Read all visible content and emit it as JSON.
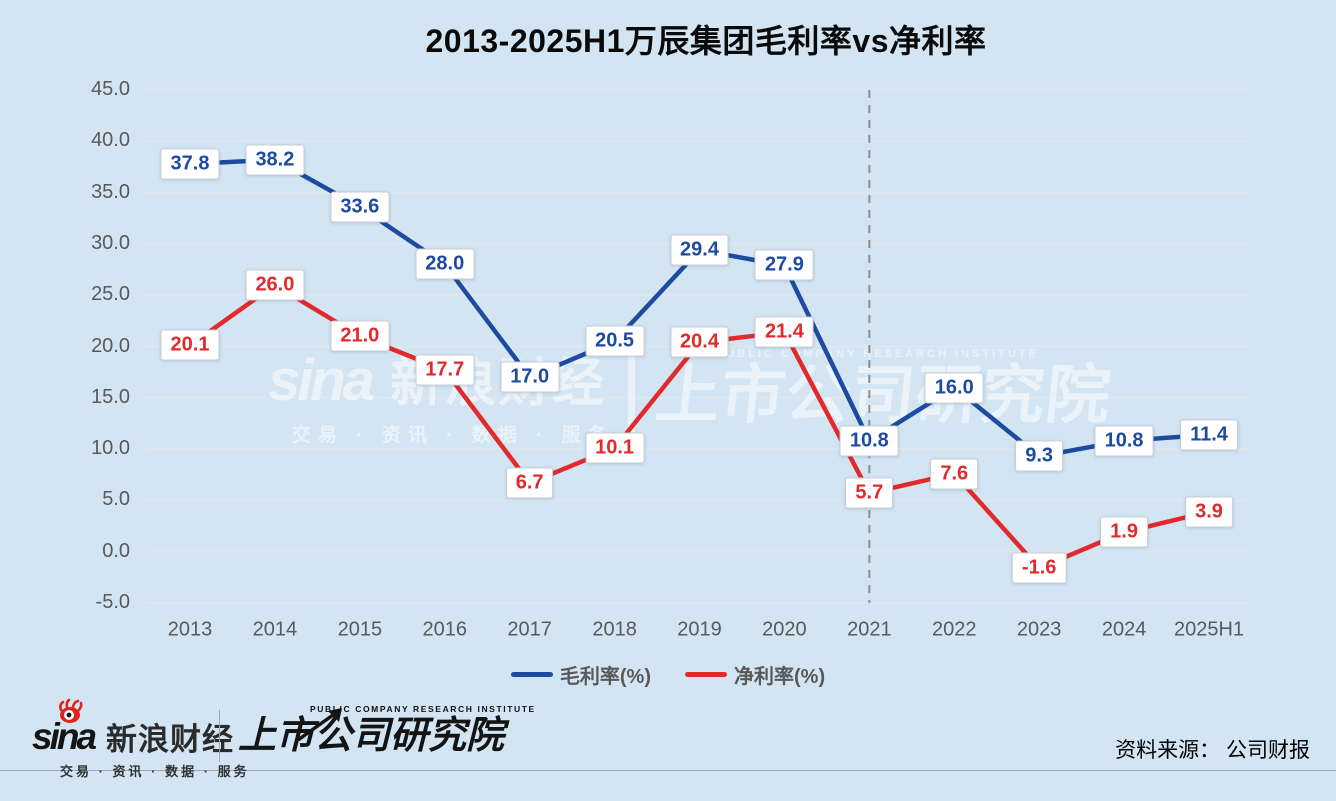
{
  "title": "2013-2025H1万辰集团毛利率vs净利率",
  "chart_data": {
    "type": "line",
    "title": "2013-2025H1万辰集团毛利率vs净利率",
    "categories": [
      "2013",
      "2014",
      "2015",
      "2016",
      "2017",
      "2018",
      "2019",
      "2020",
      "2021",
      "2022",
      "2023",
      "2024",
      "2025H1"
    ],
    "series": [
      {
        "name": "毛利率(%)",
        "color": "#1d4ba0",
        "values": [
          37.8,
          38.2,
          33.6,
          28.0,
          17.0,
          20.5,
          29.4,
          27.9,
          10.8,
          16.0,
          9.3,
          10.8,
          11.4
        ]
      },
      {
        "name": "净利率(%)",
        "color": "#e2292b",
        "values": [
          20.1,
          26.0,
          21.0,
          17.7,
          6.7,
          10.1,
          20.4,
          21.4,
          5.7,
          7.6,
          -1.6,
          1.9,
          3.9
        ]
      }
    ],
    "xlabel": "",
    "ylabel": "",
    "ylim": [
      -5,
      45
    ],
    "ytick_step": 5,
    "ytick_labels": [
      "45.0",
      "40.0",
      "35.0",
      "30.0",
      "25.0",
      "20.0",
      "15.0",
      "10.0",
      "5.0",
      "0.0",
      "-5.0"
    ],
    "grid": true,
    "legend_position": "bottom",
    "vline_category": "2021",
    "data_labels": true
  },
  "watermark": {
    "sina_word": "sina",
    "sina_cn": "新浪财经",
    "tagline": "交易 · 资讯 · 数据 · 服务",
    "institute_en": "PUBLIC COMPANY RESEARCH INSTITUTE",
    "institute_cn": "上市公司研究院"
  },
  "footer": {
    "sina_word": "sina",
    "sina_cn": "新浪财经",
    "tagline": "交易 · 资讯 · 数据 · 服务",
    "institute_en": "PUBLIC COMPANY RESEARCH INSTITUTE",
    "institute_cn": "上市公司研究院",
    "source": "资料来源： 公司财报"
  },
  "colors": {
    "background": "#d3e5f3",
    "grid": "#dfe7ee",
    "axis_text": "#595959",
    "vline": "#8c8c8c",
    "gross_margin": "#1d4ba0",
    "net_margin": "#e2292b",
    "sina_red": "#e2231a"
  }
}
